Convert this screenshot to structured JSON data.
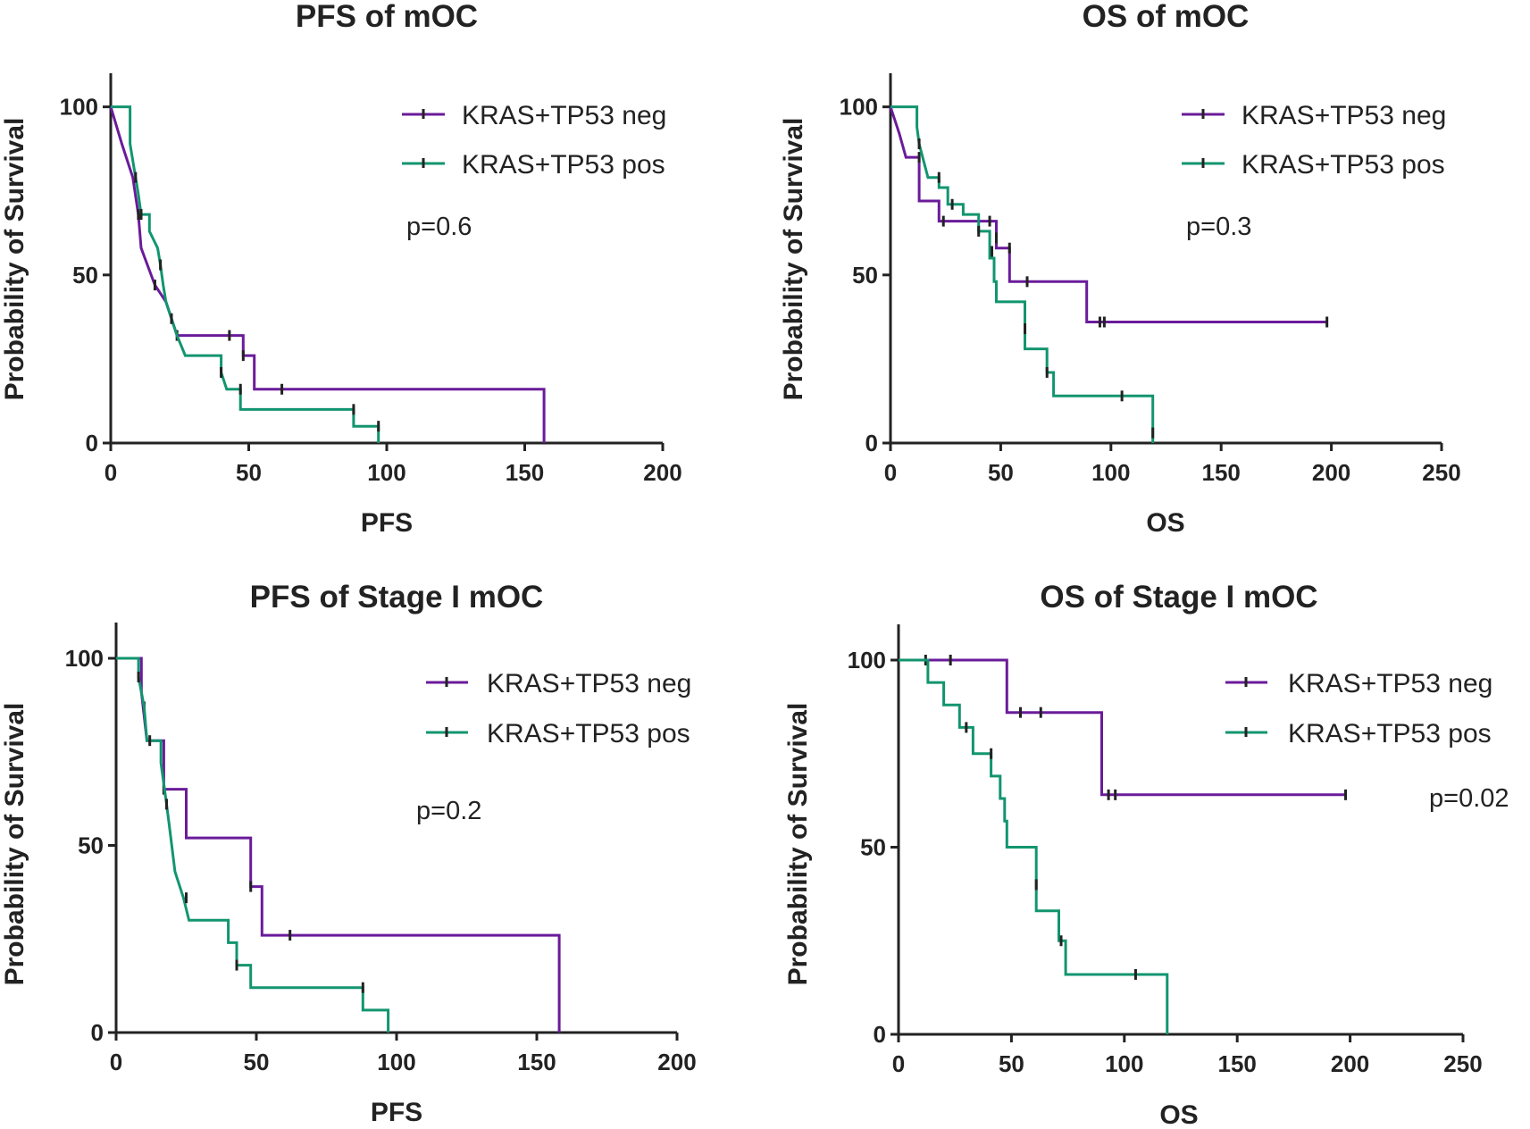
{
  "chart_data": [
    {
      "type": "line",
      "subtype": "kaplan-meier",
      "title": "PFS of mOC",
      "xlabel": "PFS",
      "ylabel": "Probability of Survival",
      "xlim": [
        0,
        200
      ],
      "ylim": [
        0,
        110
      ],
      "xticks": [
        0,
        50,
        100,
        150,
        200
      ],
      "yticks": [
        0,
        50,
        100
      ],
      "pvalue": "p=0.6",
      "legend_position": "top-right",
      "series": [
        {
          "name": "KRAS+TP53 neg",
          "color": "#6a1b9a",
          "steps": [
            [
              0,
              100
            ],
            [
              4,
              89
            ],
            [
              8,
              79
            ],
            [
              10,
              68
            ],
            [
              11,
              58
            ],
            [
              16,
              47
            ],
            [
              20,
              42
            ],
            [
              22,
              37
            ],
            [
              24,
              32
            ],
            [
              48,
              32
            ],
            [
              48,
              26
            ],
            [
              52,
              26
            ],
            [
              52,
              16
            ],
            [
              157,
              16
            ],
            [
              157,
              0
            ]
          ],
          "censors": [
            [
              10,
              68
            ],
            [
              16,
              47
            ],
            [
              24,
              32
            ],
            [
              43,
              32
            ],
            [
              48,
              26
            ],
            [
              62,
              16
            ]
          ]
        },
        {
          "name": "KRAS+TP53 pos",
          "color": "#12956f",
          "steps": [
            [
              0,
              100
            ],
            [
              7,
              100
            ],
            [
              7,
              89
            ],
            [
              8,
              84
            ],
            [
              9,
              79
            ],
            [
              10,
              74
            ],
            [
              11,
              68
            ],
            [
              14,
              68
            ],
            [
              14,
              63
            ],
            [
              17,
              58
            ],
            [
              18,
              53
            ],
            [
              19,
              47
            ],
            [
              20,
              42
            ],
            [
              22,
              37
            ],
            [
              24,
              32
            ],
            [
              27,
              26
            ],
            [
              40,
              26
            ],
            [
              40,
              21
            ],
            [
              42,
              16
            ],
            [
              47,
              16
            ],
            [
              47,
              10
            ],
            [
              88,
              10
            ],
            [
              88,
              5
            ],
            [
              97,
              5
            ],
            [
              97,
              0
            ]
          ],
          "censors": [
            [
              9,
              79
            ],
            [
              11,
              68
            ],
            [
              18,
              53
            ],
            [
              22,
              37
            ],
            [
              40,
              21
            ],
            [
              47,
              16
            ],
            [
              88,
              10
            ],
            [
              97,
              5
            ]
          ]
        }
      ]
    },
    {
      "type": "line",
      "subtype": "kaplan-meier",
      "title": "OS of mOC",
      "xlabel": "OS",
      "ylabel": "Probability of Survival",
      "xlim": [
        0,
        250
      ],
      "ylim": [
        0,
        110
      ],
      "xticks": [
        0,
        50,
        100,
        150,
        200,
        250
      ],
      "yticks": [
        0,
        50,
        100
      ],
      "pvalue": "p=0.3",
      "legend_position": "top-right",
      "series": [
        {
          "name": "KRAS+TP53 neg",
          "color": "#6a1b9a",
          "steps": [
            [
              0,
              100
            ],
            [
              4,
              92
            ],
            [
              7,
              85
            ],
            [
              13,
              85
            ],
            [
              13,
              72
            ],
            [
              22,
              72
            ],
            [
              22,
              66
            ],
            [
              48,
              66
            ],
            [
              48,
              58
            ],
            [
              54,
              58
            ],
            [
              54,
              48
            ],
            [
              89,
              48
            ],
            [
              89,
              36
            ],
            [
              198,
              36
            ]
          ],
          "censors": [
            [
              13,
              85
            ],
            [
              24,
              66
            ],
            [
              45,
              66
            ],
            [
              48,
              61
            ],
            [
              54,
              58
            ],
            [
              62,
              48
            ],
            [
              95,
              36
            ],
            [
              97,
              36
            ],
            [
              198,
              36
            ]
          ]
        },
        {
          "name": "KRAS+TP53 pos",
          "color": "#12956f",
          "steps": [
            [
              0,
              100
            ],
            [
              12,
              100
            ],
            [
              12,
              94
            ],
            [
              13,
              89
            ],
            [
              15,
              84
            ],
            [
              17,
              79
            ],
            [
              22,
              79
            ],
            [
              22,
              76
            ],
            [
              26,
              76
            ],
            [
              26,
              71
            ],
            [
              33,
              71
            ],
            [
              33,
              68
            ],
            [
              40,
              68
            ],
            [
              40,
              63
            ],
            [
              45,
              63
            ],
            [
              45,
              55
            ],
            [
              47,
              55
            ],
            [
              47,
              48
            ],
            [
              48,
              48
            ],
            [
              48,
              42
            ],
            [
              61,
              42
            ],
            [
              61,
              28
            ],
            [
              71,
              28
            ],
            [
              71,
              21
            ],
            [
              74,
              21
            ],
            [
              74,
              14
            ],
            [
              119,
              14
            ],
            [
              119,
              0
            ]
          ],
          "censors": [
            [
              13,
              89
            ],
            [
              22,
              79
            ],
            [
              28,
              71
            ],
            [
              40,
              63
            ],
            [
              46,
              57
            ],
            [
              61,
              34
            ],
            [
              71,
              21
            ],
            [
              105,
              14
            ],
            [
              119,
              3
            ]
          ]
        }
      ]
    },
    {
      "type": "line",
      "subtype": "kaplan-meier",
      "title": "PFS of Stage I mOC",
      "xlabel": "PFS",
      "ylabel": "Probability of Survival",
      "xlim": [
        0,
        200
      ],
      "ylim": [
        0,
        100
      ],
      "xticks": [
        0,
        50,
        100,
        150,
        200
      ],
      "yticks": [
        0,
        50,
        100
      ],
      "pvalue": "p=0.2",
      "legend_position": "top-right",
      "series": [
        {
          "name": "KRAS+TP53 neg",
          "color": "#6a1b9a",
          "steps": [
            [
              0,
              100
            ],
            [
              9,
              100
            ],
            [
              9,
              91
            ],
            [
              11,
              78
            ],
            [
              17,
              78
            ],
            [
              17,
              65
            ],
            [
              25,
              65
            ],
            [
              25,
              52
            ],
            [
              48,
              52
            ],
            [
              48,
              39
            ],
            [
              52,
              39
            ],
            [
              52,
              26
            ],
            [
              158,
              26
            ],
            [
              158,
              0
            ]
          ],
          "censors": [
            [
              10,
              87
            ],
            [
              17,
              65
            ],
            [
              48,
              39
            ],
            [
              62,
              26
            ]
          ]
        },
        {
          "name": "KRAS+TP53 pos",
          "color": "#12956f",
          "steps": [
            [
              0,
              100
            ],
            [
              8,
              100
            ],
            [
              8,
              95
            ],
            [
              10,
              87
            ],
            [
              11,
              78
            ],
            [
              16,
              78
            ],
            [
              16,
              72
            ],
            [
              18,
              61
            ],
            [
              19,
              55
            ],
            [
              20,
              49
            ],
            [
              21,
              43
            ],
            [
              24,
              36
            ],
            [
              26,
              30
            ],
            [
              40,
              30
            ],
            [
              40,
              24
            ],
            [
              43,
              24
            ],
            [
              43,
              18
            ],
            [
              48,
              18
            ],
            [
              48,
              12
            ],
            [
              88,
              12
            ],
            [
              88,
              6
            ],
            [
              97,
              6
            ],
            [
              97,
              0
            ]
          ],
          "censors": [
            [
              8,
              95
            ],
            [
              12,
              78
            ],
            [
              18,
              61
            ],
            [
              25,
              36
            ],
            [
              43,
              18
            ],
            [
              88,
              12
            ]
          ]
        }
      ]
    },
    {
      "type": "line",
      "subtype": "kaplan-meier",
      "title": "OS of Stage I mOC",
      "xlabel": "OS",
      "ylabel": "Probability of Survival",
      "xlim": [
        0,
        250
      ],
      "ylim": [
        0,
        100
      ],
      "xticks": [
        0,
        50,
        100,
        150,
        200,
        250
      ],
      "yticks": [
        0,
        50,
        100
      ],
      "pvalue": "p=0.02",
      "legend_position": "top-right",
      "series": [
        {
          "name": "KRAS+TP53 neg",
          "color": "#6a1b9a",
          "steps": [
            [
              0,
              100
            ],
            [
              48,
              100
            ],
            [
              48,
              86
            ],
            [
              90,
              86
            ],
            [
              90,
              64
            ],
            [
              198,
              64
            ]
          ],
          "censors": [
            [
              12,
              100
            ],
            [
              23,
              100
            ],
            [
              54,
              86
            ],
            [
              63,
              86
            ],
            [
              93,
              64
            ],
            [
              96,
              64
            ],
            [
              198,
              64
            ]
          ]
        },
        {
          "name": "KRAS+TP53 pos",
          "color": "#12956f",
          "steps": [
            [
              0,
              100
            ],
            [
              13,
              100
            ],
            [
              13,
              94
            ],
            [
              20,
              94
            ],
            [
              20,
              88
            ],
            [
              27,
              88
            ],
            [
              27,
              82
            ],
            [
              33,
              82
            ],
            [
              33,
              75
            ],
            [
              41,
              75
            ],
            [
              41,
              69
            ],
            [
              45,
              69
            ],
            [
              45,
              63
            ],
            [
              47,
              63
            ],
            [
              47,
              57
            ],
            [
              48,
              57
            ],
            [
              48,
              50
            ],
            [
              61,
              50
            ],
            [
              61,
              33
            ],
            [
              71,
              33
            ],
            [
              71,
              25
            ],
            [
              74,
              25
            ],
            [
              74,
              16
            ],
            [
              119,
              16
            ],
            [
              119,
              0
            ]
          ],
          "censors": [
            [
              30,
              82
            ],
            [
              41,
              75
            ],
            [
              61,
              40
            ],
            [
              72,
              25
            ],
            [
              105,
              16
            ]
          ]
        }
      ]
    }
  ]
}
